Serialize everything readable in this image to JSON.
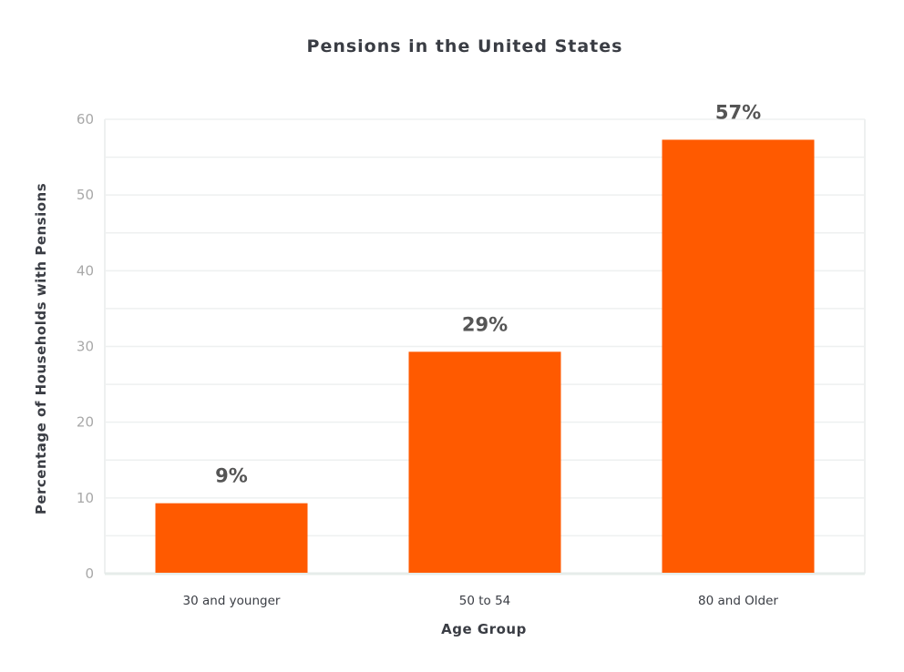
{
  "chart_data": {
    "type": "bar",
    "title": "Pensions in the United States",
    "xlabel": "Age Group",
    "ylabel": "Percentage of Households with Pensions",
    "categories": [
      "30 and younger",
      "50 to 54",
      "80 and Older"
    ],
    "values": [
      9,
      29,
      57
    ],
    "data_labels": [
      "9%",
      "29%",
      "57%"
    ],
    "ylim": [
      0,
      60
    ],
    "yticks": [
      "0",
      "10",
      "20",
      "30",
      "40",
      "50",
      "60"
    ],
    "grid": true,
    "colors": {
      "bar": "#ff5a00",
      "grid": "#eef0f0",
      "axis": "#e6ecea"
    }
  }
}
